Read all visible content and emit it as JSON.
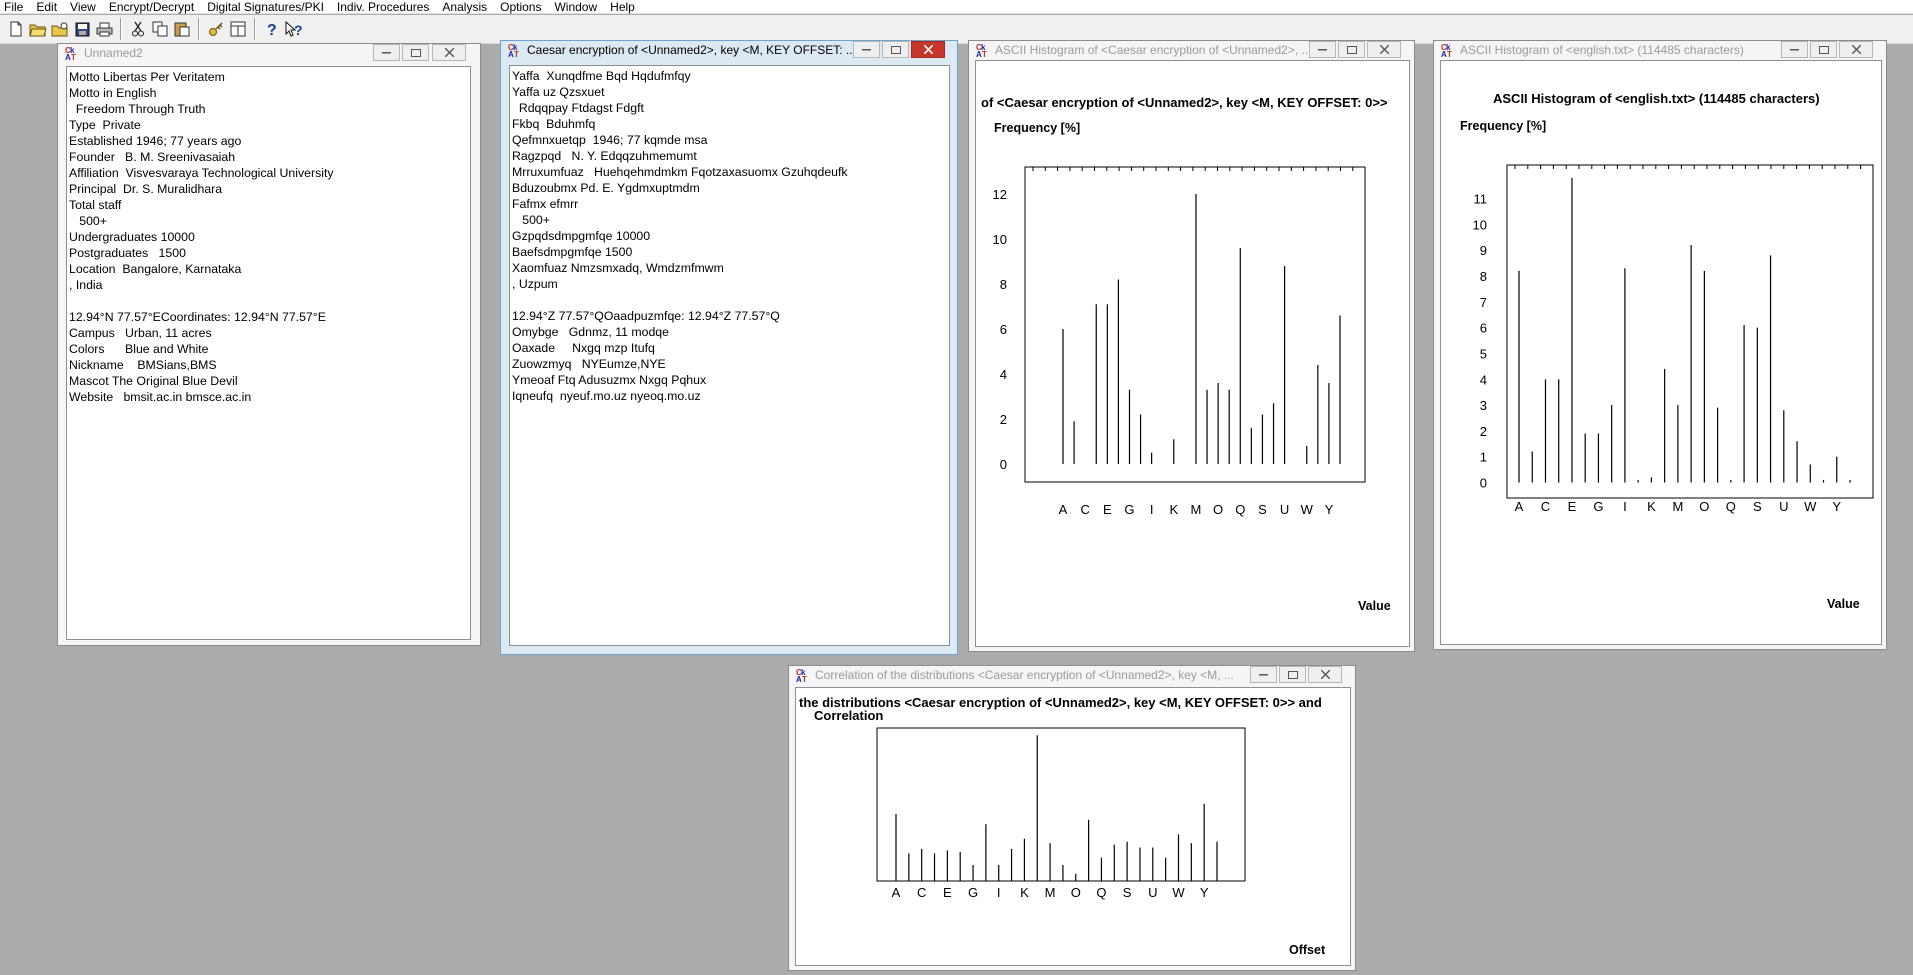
{
  "menu": [
    "File",
    "Edit",
    "View",
    "Encrypt/Decrypt",
    "Digital Signatures/PKI",
    "Indiv. Procedures",
    "Analysis",
    "Options",
    "Window",
    "Help"
  ],
  "toolbar": {
    "icons": [
      "new-document-icon",
      "open-folder-icon",
      "open-special-icon",
      "save-icon",
      "print-icon",
      "cut-icon",
      "copy-icon",
      "paste-icon",
      "key-icon",
      "window-arrange-icon",
      "help-icon",
      "context-help-icon"
    ]
  },
  "windows": {
    "unnamed2": {
      "title": "Unnamed2",
      "lines": [
        "Motto Libertas Per Veritatem",
        "Motto in English",
        "  Freedom Through Truth",
        "Type  Private",
        "Established 1946; 77 years ago",
        "Founder   B. M. Sreenivasaiah",
        "Affiliation  Visvesvaraya Technological University",
        "Principal  Dr. S. Muralidhara",
        "Total staff",
        "   500+",
        "Undergraduates 10000",
        "Postgraduates   1500",
        "Location  Bangalore, Karnataka",
        ", India",
        "",
        "12.94°N 77.57°ECoordinates: 12.94°N 77.57°E",
        "Campus   Urban, 11 acres",
        "Colors      Blue and White",
        "Nickname    BMSians,BMS",
        "Mascot The Original Blue Devil",
        "Website   bmsit.ac.in bmsce.ac.in"
      ]
    },
    "caesar": {
      "title": "Caesar encryption of <Unnamed2>, key <M, KEY OFFSET: ...",
      "lines": [
        "Yaffa  Xunqdfme Bqd Hqdufmfqy",
        "Yaffa uz Qzsxuet",
        "  Rdqqpay Ftdagst Fdgft",
        "Fkbq  Bduhmfq",
        "Qefmnxuetqp  1946; 77 kqmde msa",
        "Ragzpqd   N. Y. Edqqzuhmemumt",
        "Mrruxumfuaz   Huehqehmdmkm Fqotzaxasuomx Gzuhqdeufk",
        "Bduzoubmx Pd. E. Ygdmxuptmdm",
        "Fafmx efmrr",
        "   500+",
        "Gzpqdsdmpgmfqe 10000",
        "Baefsdmpgmfqe 1500",
        "Xaomfuaz Nmzsmxadq, Wmdzmfmwm",
        ", Uzpum",
        "",
        "12.94°Z 77.57°QOaadpuzmfqe: 12.94°Z 77.57°Q",
        "Omybge   Gdnmz, 11 modqe",
        "Oaxade     Nxgq mzp Itufq",
        "Zuowzmyq   NYEumze,NYE",
        "Ymeoaf Ftq Adusuzmx Nxgq Pqhux",
        "Iqneufq  nyeuf.mo.uz nyeoq.mo.uz"
      ]
    },
    "histogram_caesar": {
      "title": "ASCII Histogram of <Caesar encryption of <Unnamed2>, ...",
      "heading": "of <Caesar encryption of <Unnamed2>, key <M, KEY OFFSET: 0>>",
      "ylabel": "Frequency [%]",
      "xlabel": "Value"
    },
    "histogram_english": {
      "title": "ASCII Histogram of <english.txt> (114485 characters)",
      "heading": "ASCII Histogram of <english.txt> (114485 characters)",
      "ylabel": "Frequency [%]",
      "xlabel": "Value"
    },
    "correlation": {
      "title": "Correlation of the distributions <Caesar encryption of <Unnamed2>, key <M, ...",
      "heading1": "the distributions <Caesar encryption of <Unnamed2>, key <M, KEY OFFSET: 0>> and",
      "heading2": "Correlation",
      "xlabel": "Offset"
    }
  },
  "chart_data": [
    {
      "type": "bar",
      "title": "of <Caesar encryption of <Unnamed2>, key <M, KEY OFFSET: 0>>",
      "ylabel": "Frequency [%]",
      "xlabel": "Value",
      "ylim": [
        -0.8,
        13.2
      ],
      "yticks": [
        0,
        2,
        4,
        6,
        8,
        10,
        12
      ],
      "categories": [
        "A",
        "B",
        "C",
        "D",
        "E",
        "F",
        "G",
        "H",
        "I",
        "J",
        "K",
        "L",
        "M",
        "N",
        "O",
        "P",
        "Q",
        "R",
        "S",
        "T",
        "U",
        "V",
        "W",
        "X",
        "Y",
        "Z"
      ],
      "xtick_labels": [
        "A",
        "C",
        "E",
        "G",
        "I",
        "K",
        "M",
        "O",
        "Q",
        "S",
        "U",
        "W",
        "Y"
      ],
      "values": [
        6.0,
        1.9,
        0.0,
        7.1,
        7.1,
        8.2,
        3.3,
        2.2,
        0.5,
        0.0,
        1.1,
        0.0,
        12.0,
        3.3,
        3.6,
        3.3,
        9.6,
        1.6,
        2.2,
        2.7,
        8.8,
        0.0,
        0.8,
        4.4,
        3.6,
        6.6
      ]
    },
    {
      "type": "bar",
      "title": "ASCII Histogram of <english.txt> (114485 characters)",
      "ylabel": "Frequency [%]",
      "xlabel": "Value",
      "ylim": [
        -0.6,
        12.3
      ],
      "yticks": [
        0,
        1,
        2,
        3,
        4,
        5,
        6,
        7,
        8,
        9,
        10,
        11
      ],
      "categories": [
        "A",
        "B",
        "C",
        "D",
        "E",
        "F",
        "G",
        "H",
        "I",
        "J",
        "K",
        "L",
        "M",
        "N",
        "O",
        "P",
        "Q",
        "R",
        "S",
        "T",
        "U",
        "V",
        "W",
        "X",
        "Y",
        "Z"
      ],
      "xtick_labels": [
        "A",
        "C",
        "E",
        "G",
        "I",
        "K",
        "M",
        "O",
        "Q",
        "S",
        "U",
        "W",
        "Y"
      ],
      "values": [
        8.2,
        1.2,
        4.0,
        4.0,
        11.8,
        1.9,
        1.9,
        3.0,
        8.3,
        0.1,
        0.2,
        4.4,
        3.0,
        9.2,
        8.2,
        2.9,
        0.1,
        6.1,
        6.0,
        8.8,
        2.8,
        1.6,
        0.7,
        0.1,
        1.0,
        0.1
      ]
    },
    {
      "type": "bar",
      "title": "the distributions <Caesar encryption of <Unnamed2>, key <M, KEY OFFSET: 0>> and Correlation",
      "xlabel": "Offset",
      "ylim": [
        0,
        1.05
      ],
      "categories": [
        "A",
        "B",
        "C",
        "D",
        "E",
        "F",
        "G",
        "H",
        "I",
        "J",
        "K",
        "L",
        "M",
        "N",
        "O",
        "P",
        "Q",
        "R",
        "S",
        "T",
        "U",
        "V",
        "W",
        "X",
        "Y",
        "Z"
      ],
      "xtick_labels": [
        "A",
        "C",
        "E",
        "G",
        "I",
        "K",
        "M",
        "O",
        "Q",
        "S",
        "U",
        "W",
        "Y"
      ],
      "values": [
        0.46,
        0.19,
        0.22,
        0.19,
        0.21,
        0.2,
        0.11,
        0.39,
        0.11,
        0.22,
        0.29,
        1.0,
        0.26,
        0.11,
        0.05,
        0.42,
        0.16,
        0.25,
        0.27,
        0.23,
        0.23,
        0.16,
        0.32,
        0.26,
        0.53,
        0.27
      ]
    }
  ]
}
